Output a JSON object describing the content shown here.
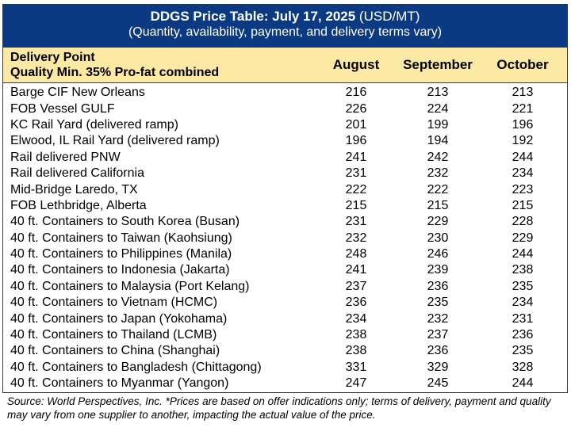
{
  "title": {
    "bold": "DDGS Price Table: July 17, 2025",
    "unit": " (USD/MT)",
    "subtitle": "(Quantity, availability, payment, and delivery terms vary)"
  },
  "header": {
    "line1": "Delivery Point",
    "line2": "Quality Min. 35% Pro-fat combined",
    "months": [
      "August",
      "September",
      "October"
    ]
  },
  "rows": [
    {
      "name": "Barge CIF New Orleans",
      "aug": "216",
      "sep": "213",
      "oct": "213"
    },
    {
      "name": "FOB Vessel GULF",
      "aug": "226",
      "sep": "224",
      "oct": "221"
    },
    {
      "name": "KC Rail Yard (delivered ramp)",
      "aug": "201",
      "sep": "199",
      "oct": "196"
    },
    {
      "name": "Elwood, IL Rail Yard (delivered ramp)",
      "aug": "196",
      "sep": "194",
      "oct": "192"
    },
    {
      "name": "Rail delivered PNW",
      "aug": "241",
      "sep": "242",
      "oct": "244"
    },
    {
      "name": "Rail delivered California",
      "aug": "231",
      "sep": "232",
      "oct": "234"
    },
    {
      "name": "Mid-Bridge Laredo, TX",
      "aug": "222",
      "sep": "222",
      "oct": "223"
    },
    {
      "name": "FOB Lethbridge, Alberta",
      "aug": "215",
      "sep": "215",
      "oct": "215"
    },
    {
      "name": "40 ft. Containers to South Korea (Busan)",
      "aug": "231",
      "sep": "229",
      "oct": "228"
    },
    {
      "name": "40 ft. Containers to Taiwan (Kaohsiung)",
      "aug": "232",
      "sep": "230",
      "oct": "229"
    },
    {
      "name": "40 ft. Containers to Philippines (Manila)",
      "aug": "248",
      "sep": "246",
      "oct": "244"
    },
    {
      "name": "40 ft. Containers to Indonesia (Jakarta)",
      "aug": "241",
      "sep": "239",
      "oct": "238"
    },
    {
      "name": "40 ft. Containers to Malaysia (Port Kelang)",
      "aug": "237",
      "sep": "236",
      "oct": "235"
    },
    {
      "name": "40 ft. Containers to Vietnam (HCMC)",
      "aug": "236",
      "sep": "235",
      "oct": "234"
    },
    {
      "name": "40 ft. Containers to Japan (Yokohama)",
      "aug": "234",
      "sep": "232",
      "oct": "231"
    },
    {
      "name": "40 ft. Containers to Thailand (LCMB)",
      "aug": "238",
      "sep": "237",
      "oct": "236"
    },
    {
      "name": "40 ft. Containers to China (Shanghai)",
      "aug": "238",
      "sep": "236",
      "oct": "235"
    },
    {
      "name": "40 ft. Containers to Bangladesh (Chittagong)",
      "aug": "331",
      "sep": "329",
      "oct": "328"
    },
    {
      "name": "40 ft. Containers to Myanmar (Yangon)",
      "aug": "247",
      "sep": "245",
      "oct": "244"
    }
  ],
  "footnote": "Source: World Perspectives, Inc. *Prices are based on offer indications only; terms of delivery, payment and quality may vary from one supplier to another, impacting the actual value of the price.",
  "colors": {
    "title_bg": "#0b3a82",
    "header_bg": "#fbe9a4"
  }
}
